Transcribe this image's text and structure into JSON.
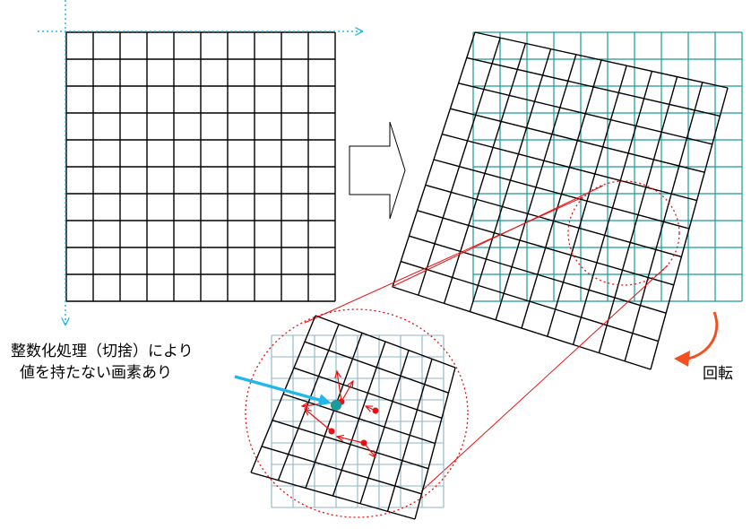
{
  "annotation": {
    "line1": "整数化処理（切捨）により",
    "line2": "値を持たない画素あり"
  },
  "rotation_label": "回転",
  "colors": {
    "grid": "#000000",
    "target_grid": "#1a9a9a",
    "zoom_grid": "#8fb4c4",
    "axis": "#29b6e8",
    "highlight": "#e81010",
    "pointer": "#22b7ea",
    "missing_pixel": "#1a9a9a",
    "rotate_arrow": "#f25022"
  },
  "icons": {
    "transform_arrow": "hollow-right-arrow-icon",
    "rotate_arrow": "curved-arrow-icon",
    "pointer": "cyan-arrow-icon"
  }
}
